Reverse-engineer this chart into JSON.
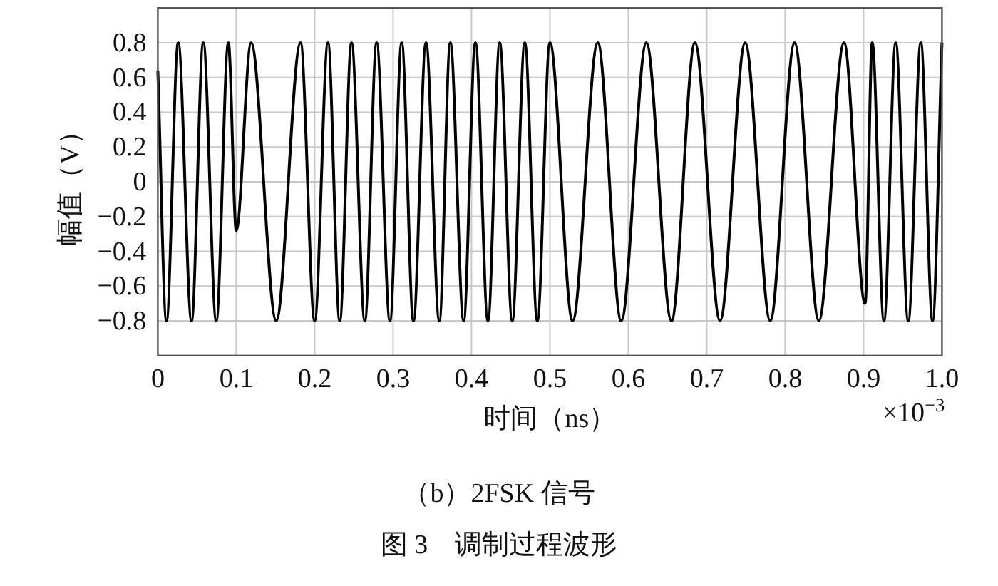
{
  "chart_data": {
    "type": "line",
    "title": "（b）2FSK 信号",
    "xlabel": "时间（ns）",
    "ylabel": "幅值（V）",
    "annotations": [
      "×10$^{−3}$",
      "图 3　调制过程波形"
    ],
    "xlim": [
      0,
      1
    ],
    "ylim": [
      -1,
      1
    ],
    "xticks": [
      0,
      0.1,
      0.2,
      0.3,
      0.4,
      0.5,
      0.6,
      0.7,
      0.8,
      0.9,
      {
        "value": 1,
        "label": "1.0"
      }
    ],
    "yticks": [
      {
        "value": -0.8,
        "label": "−0.8"
      },
      {
        "value": -0.6,
        "label": "−0.6"
      },
      {
        "value": -0.4,
        "label": "−0.4"
      },
      {
        "value": -0.2,
        "label": "−0.2"
      },
      0,
      0.2,
      0.4,
      0.6,
      0.8
    ],
    "grid": true,
    "marker": "none",
    "line_style": "solid",
    "series": [
      {
        "color": "#000000",
        "x": [
          0,
          0.011,
          0.026,
          0.043,
          0.058,
          0.0745,
          0.09,
          0.1,
          0.119,
          0.151,
          0.182,
          0.2,
          0.217,
          0.232,
          0.247,
          0.264,
          0.279,
          0.296,
          0.311,
          0.326,
          0.342,
          0.359,
          0.373,
          0.39,
          0.405,
          0.421,
          0.436,
          0.452,
          0.468,
          0.484,
          0.5,
          0.529,
          0.561,
          0.591,
          0.623,
          0.655,
          0.685,
          0.717,
          0.749,
          0.781,
          0.812,
          0.843,
          0.875,
          0.902,
          0.911,
          0.926,
          0.941,
          0.957,
          0.973,
          0.988,
          1
        ],
        "values": [
          0.64,
          -0.8,
          0.8,
          -0.8,
          0.8,
          -0.8,
          0.8,
          -0.28,
          0.8,
          -0.8,
          0.8,
          -0.8,
          0.8,
          -0.8,
          0.8,
          -0.8,
          0.8,
          -0.8,
          0.8,
          -0.8,
          0.8,
          -0.8,
          0.8,
          -0.8,
          0.8,
          -0.8,
          0.8,
          -0.8,
          0.8,
          -0.8,
          0.8,
          -0.8,
          0.8,
          -0.8,
          0.8,
          -0.8,
          0.8,
          -0.8,
          0.8,
          -0.8,
          0.8,
          -0.8,
          0.8,
          -0.7,
          0.8,
          -0.8,
          0.8,
          -0.8,
          0.8,
          -0.8,
          0.8
        ]
      }
    ]
  }
}
